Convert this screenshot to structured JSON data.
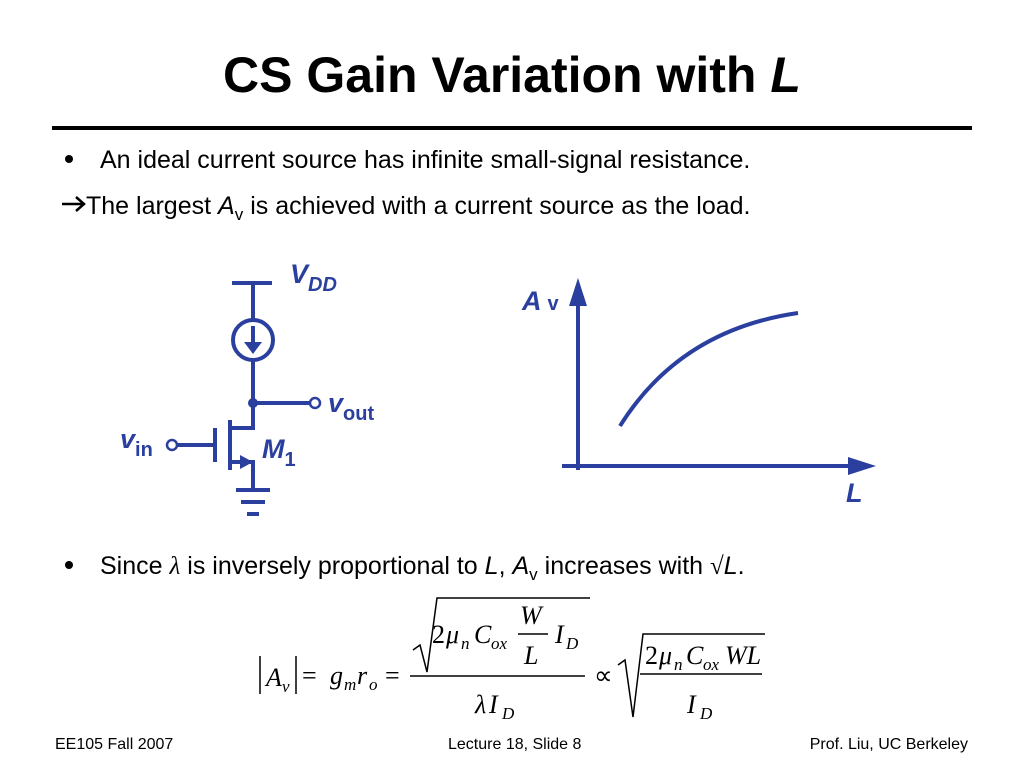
{
  "title": {
    "text": "CS Gain Variation with",
    "emphasis": "L"
  },
  "bullets": [
    "An ideal current source has infinite small-signal resistance.",
    {
      "before": "Since",
      "lambda": "λ",
      "middle": "is inversely proportional to",
      "L": "L",
      "comma": ",",
      "A": "A",
      "sub": "v",
      "after": "increases with",
      "root": "√",
      "L2": "L",
      "period": "."
    }
  ],
  "conclusion": {
    "before": "The largest",
    "symbol": "A",
    "subscript": "v",
    "after": "is achieved with a current source as the load."
  },
  "circuit": {
    "supply": "V",
    "supply_sub": "DD",
    "output": "v",
    "output_sub": "out",
    "input": "v",
    "input_sub": "in",
    "transistor": "M",
    "transistor_sub": "1"
  },
  "graph": {
    "y_label": "A",
    "y_sub": "v",
    "x_label": "L"
  },
  "formula": [
    "A",
    "v",
    "=",
    "g",
    "m",
    "r",
    "o",
    "=",
    "2",
    "μ",
    "n",
    "C",
    "ox",
    "W",
    "L",
    "I",
    "D",
    "λ",
    "I",
    "D",
    "∝",
    "2",
    "μ",
    "n",
    "C",
    "ox",
    "WL",
    "I",
    "D"
  ],
  "footer": {
    "left": "EE105 Fall 2007",
    "center": "Lecture 18, Slide 8",
    "right": "Prof. Liu, UC Berkeley"
  }
}
